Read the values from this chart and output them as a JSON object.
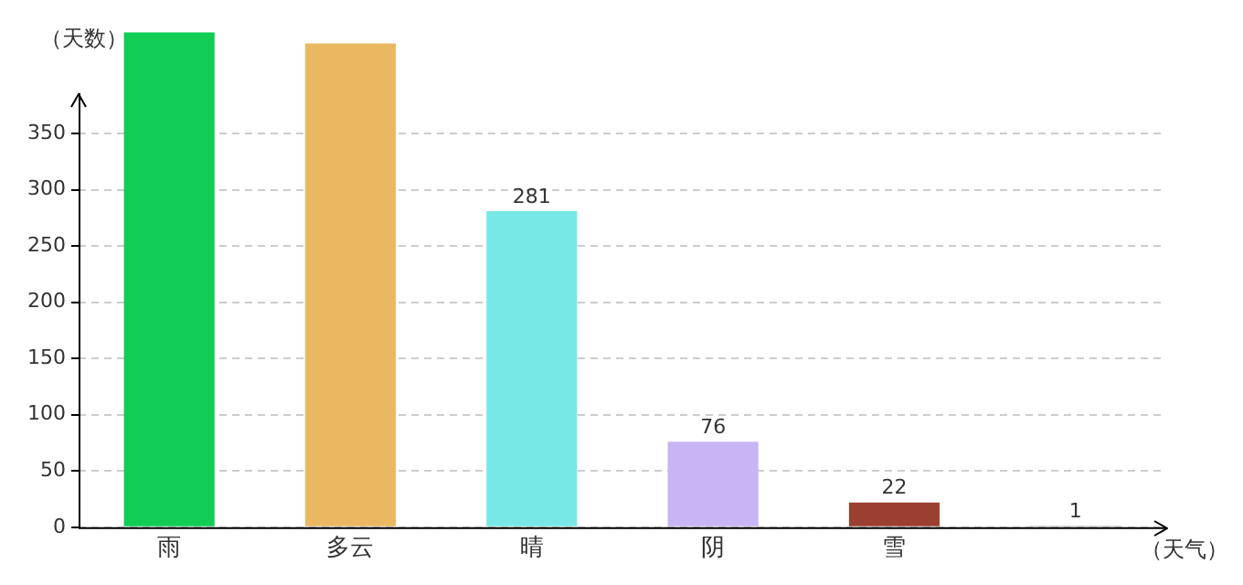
{
  "chart_data": {
    "type": "bar",
    "xlabel": "（天气）",
    "ylabel": "（天数）",
    "categories": [
      "雨",
      "多云",
      "晴",
      "阴",
      "雪",
      null
    ],
    "values": [
      440,
      430,
      281,
      76,
      22,
      1
    ],
    "colors": [
      "#11cc55",
      "#ebb862",
      "#77e8e6",
      "#c8b5f5",
      "#9b4030",
      "#555555"
    ],
    "value_labels": [
      null,
      null,
      "281",
      "76",
      "22",
      "1"
    ],
    "ylim": [
      0,
      440
    ],
    "yticks": [
      0,
      50,
      100,
      150,
      200,
      250,
      300,
      350
    ],
    "grid": "y",
    "legend": false
  }
}
